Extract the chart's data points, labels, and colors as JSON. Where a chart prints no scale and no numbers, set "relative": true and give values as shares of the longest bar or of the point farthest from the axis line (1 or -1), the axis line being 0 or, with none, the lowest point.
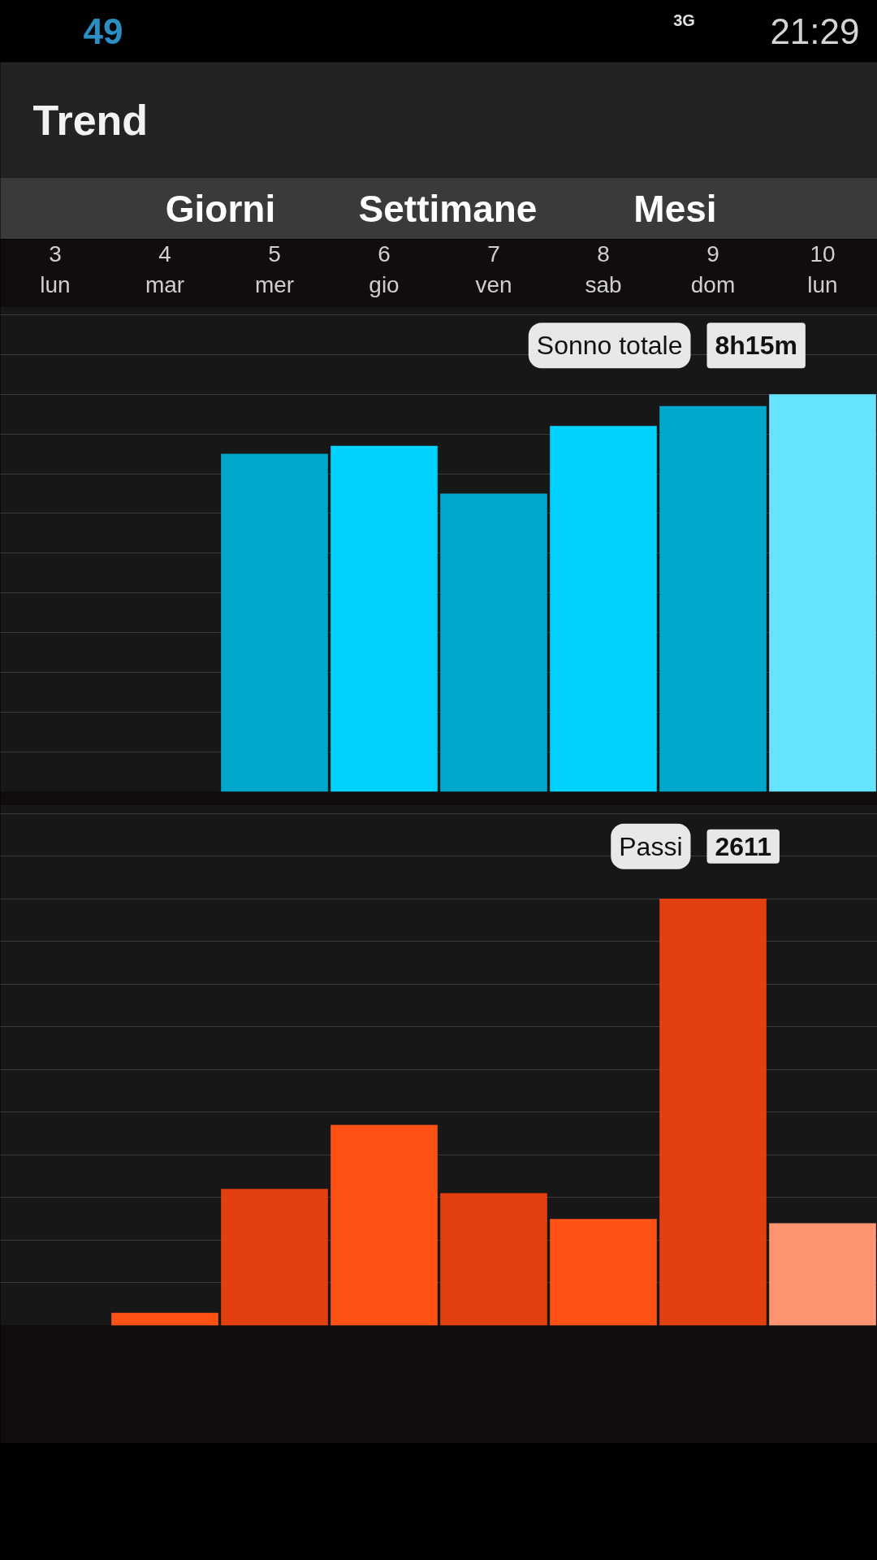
{
  "chart_data": [
    {
      "type": "other",
      "annotations": [
        "49",
        "3G",
        "21:29"
      ]
    },
    {
      "type": "other",
      "title": "Trend",
      "annotations": [
        "Giorni",
        "Settimane",
        "Mesi"
      ]
    },
    {
      "type": "bar",
      "relative": true,
      "grid": "y",
      "categories": [
        "3\nlun",
        "4\nmar",
        "5\nmer",
        "6\ngio",
        "7\nven",
        "8\nsab",
        "9\ndom",
        "10\nlun"
      ],
      "values": [
        null,
        null,
        0.85,
        0.87,
        0.75,
        0.92,
        0.97,
        1.0
      ],
      "colors": [
        null,
        null,
        "#00a8cc",
        "#00d2ff",
        "#00a8cc",
        "#00d2ff",
        "#00a8cc",
        "#66e4ff"
      ],
      "annotations": [
        "Sonno totale",
        "8h15m"
      ]
    },
    {
      "type": "bar",
      "relative": true,
      "grid": "y",
      "categories": [
        null,
        null,
        null,
        null,
        null,
        null,
        null,
        null
      ],
      "values": [
        null,
        0.03,
        0.32,
        0.47,
        0.31,
        0.25,
        1.0,
        0.24
      ],
      "colors": [
        null,
        "#ff5214",
        "#e34011",
        "#ff5214",
        "#e34011",
        "#ff5214",
        "#e34011",
        "#ff9470"
      ],
      "annotations": [
        "Passi",
        "2611"
      ]
    }
  ]
}
